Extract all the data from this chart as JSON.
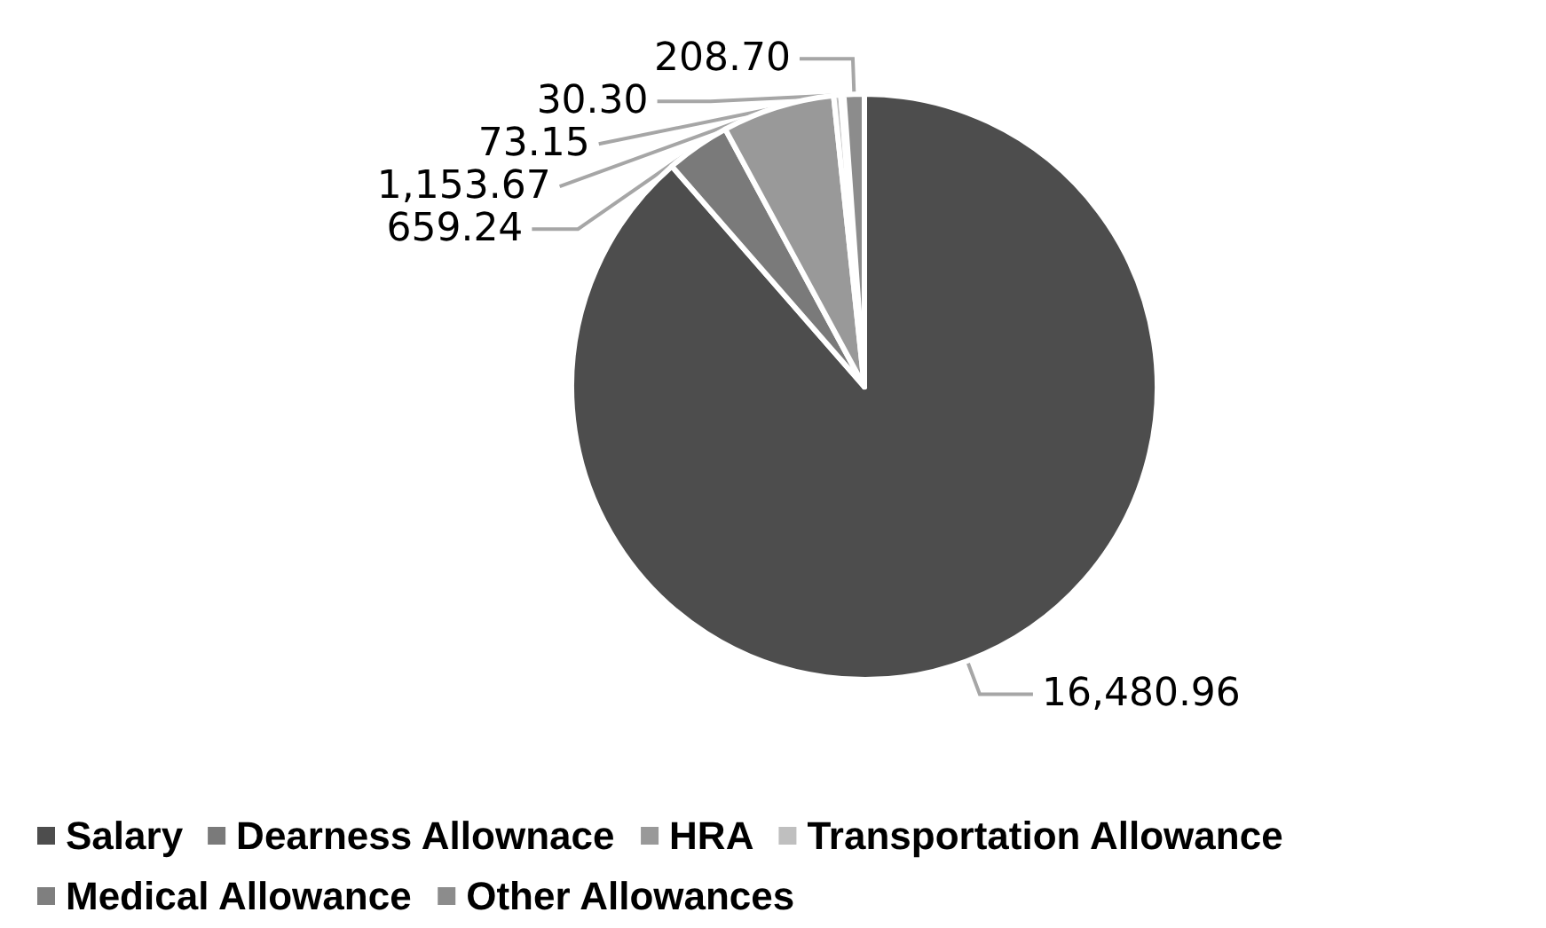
{
  "chart_data": {
    "type": "pie",
    "categories": [
      "Salary",
      "Dearness Allownace",
      "HRA",
      "Transportation Allowance",
      "Medical Allowance",
      "Other Allowances"
    ],
    "values": [
      16480.96,
      659.24,
      1153.67,
      73.15,
      30.3,
      208.7
    ],
    "value_labels": [
      "16,480.96",
      "659.24",
      "1,153.67",
      "73.15",
      "30.30",
      "208.70"
    ],
    "colors": [
      "#4d4d4d",
      "#7a7a7a",
      "#999999",
      "#bfbfbf",
      "#7f7f7f",
      "#8c8c8c"
    ],
    "legend": "bottom"
  }
}
